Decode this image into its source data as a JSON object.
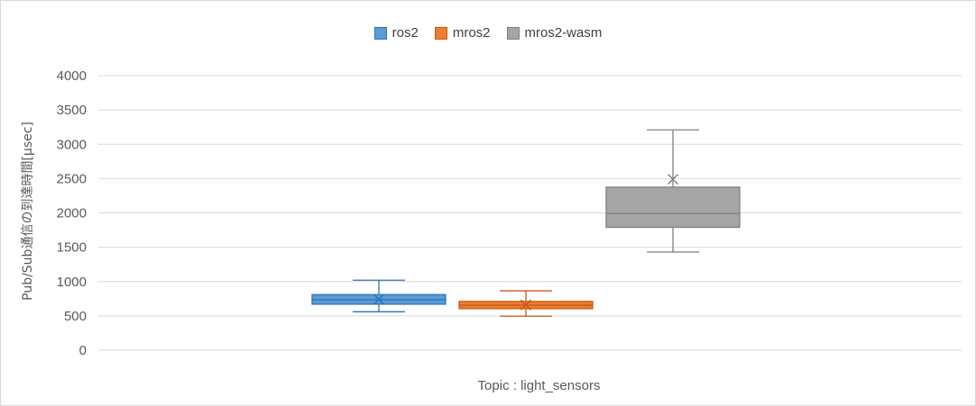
{
  "chart_data": {
    "type": "box",
    "title": "",
    "xlabel": "Topic : light_sensors",
    "ylabel": "Pub/Sub通信の到達時間[µsec]",
    "ylim": [
      0,
      4000
    ],
    "yticks": [
      0,
      500,
      1000,
      1500,
      2000,
      2500,
      3000,
      3500,
      4000
    ],
    "grid": true,
    "legend_position": "top-center",
    "series": [
      {
        "name": "ros2",
        "color": "#5b9bd5",
        "stroke": "#2e75b6",
        "min": 560,
        "q1": 670,
        "median": 735,
        "q3": 810,
        "max": 1020,
        "mean": 740
      },
      {
        "name": "mros2",
        "color": "#ed7d31",
        "stroke": "#c55a11",
        "min": 495,
        "q1": 605,
        "median": 655,
        "q3": 710,
        "max": 865,
        "mean": 660
      },
      {
        "name": "mros2-wasm",
        "color": "#a5a5a5",
        "stroke": "#7f7f7f",
        "min": 1430,
        "q1": 1790,
        "median": 1990,
        "q3": 2375,
        "max": 3210,
        "mean": 2490
      }
    ]
  }
}
